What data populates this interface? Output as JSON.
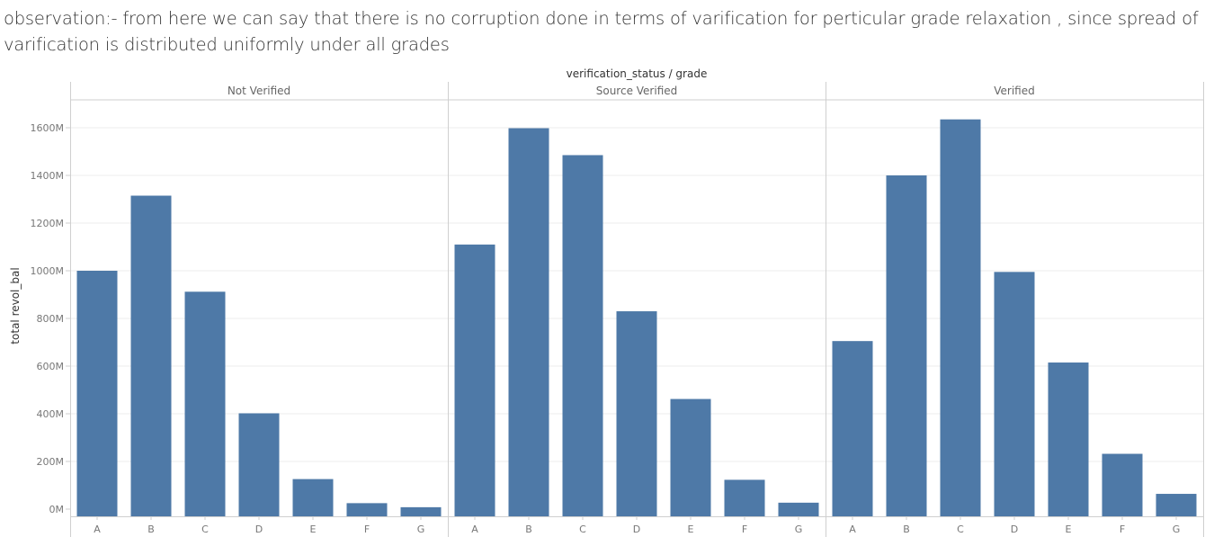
{
  "observation_text": "observation:- from here we can say that there is no corruption  done in terms of varification for perticular grade relaxation , since spread of varification is distributed uniformly under all grades",
  "chart_data": {
    "type": "bar",
    "title": "verification_status / grade",
    "ylabel": "total revol_bal",
    "ylim": [
      0,
      1700
    ],
    "yticks": [
      0,
      200,
      400,
      600,
      800,
      1000,
      1200,
      1400,
      1600
    ],
    "ytick_labels": [
      "0M",
      "200M",
      "400M",
      "600M",
      "800M",
      "1000M",
      "1200M",
      "1400M",
      "1600M"
    ],
    "value_unit": "M",
    "bar_color": "#4e79a7",
    "grid": true,
    "categories": [
      "A",
      "B",
      "C",
      "D",
      "E",
      "F",
      "G"
    ],
    "panels": [
      {
        "name": "Not Verified",
        "values": [
          1000,
          1315,
          912,
          402,
          126,
          25,
          8
        ]
      },
      {
        "name": "Source Verified",
        "values": [
          1110,
          1598,
          1485,
          830,
          462,
          123,
          27
        ]
      },
      {
        "name": "Verified",
        "values": [
          705,
          1400,
          1635,
          995,
          615,
          232,
          64
        ]
      }
    ]
  }
}
